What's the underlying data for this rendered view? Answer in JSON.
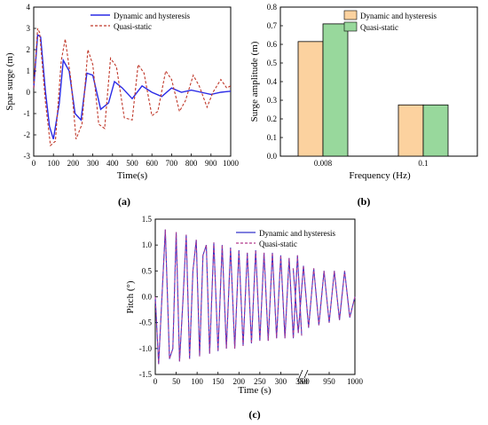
{
  "chart_data": [
    {
      "type": "line",
      "panel_label": "(a)",
      "xlabel": "Time(s)",
      "ylabel": "Spar surge (m)",
      "xlim": [
        0,
        1000
      ],
      "ylim": [
        -3,
        4
      ],
      "x_ticks": [
        "0",
        "100",
        "200",
        "300",
        "400",
        "500",
        "600",
        "700",
        "800",
        "900",
        "1000"
      ],
      "y_ticks": [
        "-3",
        "-2",
        "-1",
        "0",
        "1",
        "2",
        "3",
        "4"
      ],
      "legend_position": "top-right",
      "series": [
        {
          "name": "Dynamic and hysteresis",
          "color": "#2a2ae6",
          "style": "solid",
          "x": [
            0,
            20,
            35,
            60,
            80,
            100,
            130,
            150,
            180,
            210,
            240,
            270,
            300,
            340,
            380,
            410,
            450,
            500,
            550,
            600,
            650,
            700,
            750,
            800,
            850,
            900,
            950,
            1000
          ],
          "y": [
            0.2,
            2.7,
            2.6,
            0.0,
            -1.6,
            -2.2,
            -0.5,
            1.5,
            1.0,
            -1.0,
            -1.3,
            0.9,
            0.8,
            -0.8,
            -0.5,
            0.5,
            0.2,
            -0.3,
            0.3,
            0.0,
            -0.2,
            0.2,
            0.0,
            0.1,
            0.0,
            -0.1,
            0.0,
            0.05
          ]
        },
        {
          "name": "Quasi-static",
          "color": "#c0392b",
          "style": "dashed",
          "x": [
            0,
            20,
            30,
            60,
            85,
            110,
            140,
            160,
            190,
            215,
            245,
            275,
            300,
            330,
            360,
            390,
            420,
            460,
            500,
            530,
            560,
            600,
            630,
            670,
            700,
            740,
            770,
            810,
            840,
            880,
            910,
            950,
            980,
            1000
          ],
          "y": [
            0.2,
            3.0,
            2.8,
            -0.5,
            -2.5,
            -2.3,
            1.5,
            2.5,
            0.5,
            -2.2,
            -1.5,
            2.0,
            1.3,
            -1.5,
            -1.7,
            1.6,
            1.2,
            -1.2,
            -1.3,
            1.3,
            0.9,
            -1.1,
            -0.9,
            1.0,
            0.6,
            -0.9,
            -0.4,
            0.8,
            0.3,
            -0.7,
            0.0,
            0.6,
            0.2,
            0.3
          ]
        }
      ]
    },
    {
      "type": "bar",
      "panel_label": "(b)",
      "xlabel": "Frequency (Hz)",
      "ylabel": "Surge amplitude (m)",
      "categories": [
        "0.008",
        "0.1"
      ],
      "ylim": [
        0,
        0.8
      ],
      "y_ticks": [
        "0.0",
        "0.1",
        "0.2",
        "0.3",
        "0.4",
        "0.5",
        "0.6",
        "0.7",
        "0.8"
      ],
      "legend_position": "top-right",
      "series": [
        {
          "name": "Dynamic and hysteresis",
          "color": "#fcd29f",
          "values": [
            0.615,
            0.275
          ]
        },
        {
          "name": "Quasi-static",
          "color": "#98d89c",
          "values": [
            0.71,
            0.275
          ]
        }
      ]
    },
    {
      "type": "line",
      "panel_label": "(c)",
      "xlabel": "Time (s)",
      "ylabel": "Pitch (°)",
      "ylim": [
        -1.5,
        1.5
      ],
      "x_ticks": [
        "0",
        "50",
        "100",
        "150",
        "200",
        "250",
        "300",
        "350",
        "900",
        "950",
        "1000"
      ],
      "y_ticks": [
        "-1.5",
        "-1.0",
        "-0.5",
        "0.0",
        "0.5",
        "1.0",
        "1.5"
      ],
      "axis_break": "between 350 and 900",
      "legend_position": "top-right",
      "series": [
        {
          "name": "Dynamic and hysteresis",
          "color": "#3333cc",
          "style": "solid",
          "x": [
            0,
            8,
            16,
            24,
            34,
            42,
            50,
            58,
            66,
            74,
            82,
            90,
            98,
            106,
            114,
            122,
            130,
            140,
            150,
            160,
            170,
            180,
            190,
            200,
            210,
            220,
            230,
            240,
            250,
            260,
            270,
            280,
            290,
            300,
            310,
            320,
            330,
            340,
            350,
            880,
            890,
            900,
            910,
            920,
            930,
            940,
            950,
            960,
            970,
            980,
            990,
            1000
          ],
          "y": [
            0.0,
            -1.3,
            0.0,
            1.3,
            -1.2,
            -1.0,
            1.25,
            -1.25,
            -0.1,
            1.2,
            -1.2,
            0.5,
            1.1,
            -1.15,
            0.8,
            1.0,
            -1.1,
            1.05,
            -1.05,
            1.0,
            -1.0,
            0.95,
            -1.0,
            0.9,
            -0.95,
            0.85,
            -0.9,
            0.9,
            -0.85,
            0.85,
            -0.85,
            0.85,
            -0.8,
            0.8,
            -0.8,
            0.75,
            -0.8,
            0.8,
            -0.75,
            0.55,
            -0.7,
            0.6,
            -0.6,
            0.55,
            -0.55,
            0.5,
            -0.5,
            0.5,
            -0.45,
            0.5,
            -0.4,
            0.0
          ]
        },
        {
          "name": "Quasi-static",
          "color": "#b23a8c",
          "style": "dashed",
          "x": [
            0,
            8,
            16,
            24,
            34,
            42,
            50,
            58,
            66,
            74,
            82,
            90,
            98,
            106,
            114,
            122,
            130,
            140,
            150,
            160,
            170,
            180,
            190,
            200,
            210,
            220,
            230,
            240,
            250,
            260,
            270,
            280,
            290,
            300,
            310,
            320,
            330,
            340,
            350,
            880,
            890,
            900,
            910,
            920,
            930,
            940,
            950,
            960,
            970,
            980,
            990,
            1000
          ],
          "y": [
            0.0,
            -1.3,
            0.0,
            1.3,
            -1.2,
            -1.0,
            1.25,
            -1.25,
            -0.1,
            1.2,
            -1.2,
            0.5,
            1.1,
            -1.15,
            0.8,
            1.0,
            -1.1,
            1.05,
            -1.05,
            1.0,
            -1.0,
            0.95,
            -1.0,
            0.9,
            -0.95,
            0.85,
            -0.9,
            0.9,
            -0.85,
            0.85,
            -0.85,
            0.85,
            -0.8,
            0.8,
            -0.8,
            0.75,
            -0.8,
            0.8,
            -0.75,
            0.55,
            -0.7,
            0.6,
            -0.6,
            0.55,
            -0.55,
            0.5,
            -0.5,
            0.5,
            -0.45,
            0.5,
            -0.4,
            0.0
          ]
        }
      ]
    }
  ]
}
